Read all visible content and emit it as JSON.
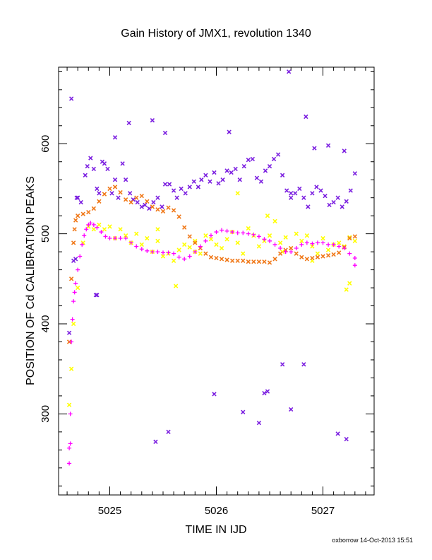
{
  "chart_data": {
    "type": "scatter",
    "title": "Gain History of JMX1, revolution 1340",
    "xlabel": "TIME IN IJD",
    "ylabel": "POSITION OF Cd CALIBRATION PEAKS",
    "xlim": [
      5024.52,
      5027.48
    ],
    "ylim": [
      210,
      685
    ],
    "xticks": [
      5025,
      5026,
      5027
    ],
    "yticks": [
      300,
      400,
      500,
      600
    ],
    "grid": false,
    "footer": "oxborrow 14-Oct-2013 15:51",
    "series": [
      {
        "marker": "x",
        "color": "#7b1fe0",
        "x": [
          5024.62,
          5024.66,
          5024.68,
          5024.7,
          5024.73,
          5024.77,
          5024.79,
          5024.82,
          5024.85,
          5024.88,
          5024.9,
          5024.93,
          5024.95,
          5024.98,
          5025.02,
          5025.05,
          5025.08,
          5025.12,
          5025.15,
          5025.19,
          5025.22,
          5025.26,
          5025.3,
          5025.33,
          5025.37,
          5025.41,
          5025.45,
          5025.49,
          5025.52,
          5025.56,
          5025.6,
          5025.63,
          5025.67,
          5025.71,
          5025.75,
          5025.79,
          5025.83,
          5025.86,
          5025.9,
          5025.94,
          5025.98,
          5026.02,
          5026.06,
          5026.1,
          5026.14,
          5026.18,
          5026.22,
          5026.26,
          5026.3,
          5026.34,
          5026.38,
          5026.42,
          5026.46,
          5026.5,
          5026.54,
          5026.58,
          5026.62,
          5026.66,
          5026.7,
          5026.74,
          5026.78,
          5026.82,
          5026.86,
          5026.9,
          5026.94,
          5026.98,
          5027.02,
          5027.06,
          5027.1,
          5027.14,
          5027.18,
          5027.22,
          5027.26,
          5027.3,
          5024.64,
          5024.69,
          5024.87,
          5025.05,
          5025.18,
          5025.4,
          5025.52,
          5025.98,
          5026.12,
          5026.25,
          5026.4,
          5026.45,
          5026.48,
          5026.68,
          5026.7,
          5026.82,
          5026.84,
          5027.05,
          5027.2,
          5024.88,
          5025.43,
          5025.55,
          5026.62,
          5026.7,
          5026.92,
          5027.14,
          5027.22
        ],
        "y": [
          390,
          470,
          472,
          540,
          535,
          565,
          575,
          584,
          572,
          550,
          545,
          580,
          578,
          572,
          545,
          560,
          540,
          578,
          560,
          545,
          538,
          535,
          530,
          532,
          528,
          535,
          540,
          530,
          555,
          555,
          548,
          540,
          550,
          545,
          552,
          558,
          552,
          560,
          565,
          558,
          568,
          556,
          560,
          570,
          568,
          572,
          560,
          575,
          582,
          583,
          562,
          558,
          570,
          575,
          583,
          588,
          565,
          548,
          545,
          545,
          550,
          540,
          530,
          545,
          552,
          548,
          542,
          532,
          535,
          540,
          530,
          536,
          548,
          567,
          650,
          540,
          432,
          607,
          623,
          626,
          612,
          322,
          613,
          302,
          290,
          323,
          325,
          680,
          540,
          355,
          630,
          598,
          592,
          432,
          269,
          280,
          355,
          305,
          595,
          278,
          272
        ]
      },
      {
        "marker": "x",
        "color": "#ffff00",
        "x": [
          5024.62,
          5024.64,
          5024.66,
          5024.7,
          5024.75,
          5024.8,
          5024.85,
          5024.9,
          5024.95,
          5025.0,
          5025.05,
          5025.1,
          5025.15,
          5025.2,
          5025.25,
          5025.3,
          5025.35,
          5025.4,
          5025.45,
          5025.5,
          5025.55,
          5025.6,
          5025.65,
          5025.7,
          5025.75,
          5025.8,
          5025.85,
          5025.9,
          5025.95,
          5026.0,
          5026.05,
          5026.1,
          5026.15,
          5026.2,
          5026.25,
          5026.3,
          5026.35,
          5026.4,
          5026.45,
          5026.5,
          5026.55,
          5026.6,
          5026.65,
          5026.7,
          5026.75,
          5026.8,
          5026.85,
          5026.9,
          5026.95,
          5027.0,
          5027.05,
          5027.1,
          5027.15,
          5027.2,
          5027.25,
          5027.3,
          5025.45,
          5025.62,
          5025.8,
          5026.2,
          5026.48,
          5026.62,
          5026.9,
          5027.22,
          5027.25
        ],
        "y": [
          310,
          350,
          400,
          440,
          490,
          508,
          505,
          510,
          505,
          508,
          495,
          505,
          498,
          490,
          500,
          488,
          495,
          480,
          492,
          475,
          478,
          470,
          482,
          488,
          485,
          492,
          478,
          498,
          494,
          488,
          484,
          494,
          502,
          490,
          478,
          506,
          498,
          486,
          492,
          498,
          514,
          490,
          496,
          484,
          500,
          492,
          498,
          486,
          478,
          495,
          482,
          488,
          490,
          486,
          496,
          492,
          505,
          442,
          480,
          545,
          520,
          480,
          470,
          438,
          445
        ]
      },
      {
        "marker": "x",
        "color": "#f07818",
        "x": [
          5024.62,
          5024.64,
          5024.66,
          5024.67,
          5024.68,
          5024.7,
          5024.75,
          5024.8,
          5024.85,
          5024.9,
          5024.95,
          5025.0,
          5025.05,
          5025.1,
          5025.15,
          5025.2,
          5025.25,
          5025.3,
          5025.35,
          5025.4,
          5025.45,
          5025.5,
          5025.55,
          5025.6,
          5025.65,
          5025.7,
          5025.75,
          5025.8,
          5025.85,
          5025.9,
          5025.95,
          5026.0,
          5026.05,
          5026.1,
          5026.15,
          5026.2,
          5026.25,
          5026.3,
          5026.35,
          5026.4,
          5026.45,
          5026.5,
          5026.55,
          5026.6,
          5026.65,
          5026.7,
          5026.75,
          5026.8,
          5026.85,
          5026.9,
          5026.95,
          5027.0,
          5027.05,
          5027.1,
          5027.15,
          5027.2,
          5027.25,
          5027.3
        ],
        "y": [
          380,
          450,
          490,
          505,
          515,
          520,
          522,
          524,
          528,
          536,
          544,
          550,
          552,
          546,
          538,
          535,
          540,
          542,
          536,
          530,
          527,
          525,
          529,
          526,
          519,
          507,
          497,
          490,
          484,
          478,
          474,
          473,
          472,
          471,
          470,
          470,
          470,
          469,
          469,
          469,
          469,
          468,
          472,
          478,
          482,
          484,
          478,
          474,
          472,
          473,
          474,
          475,
          476,
          477,
          479,
          485,
          495,
          497
        ]
      },
      {
        "marker": "+",
        "color": "#ff00ff",
        "x": [
          5024.62,
          5024.63,
          5024.64,
          5024.65,
          5024.66,
          5024.67,
          5024.68,
          5024.7,
          5024.72,
          5024.74,
          5024.76,
          5024.78,
          5024.8,
          5024.82,
          5024.85,
          5024.88,
          5024.92,
          5024.96,
          5025.0,
          5025.05,
          5025.1,
          5025.15,
          5025.2,
          5025.25,
          5025.3,
          5025.35,
          5025.4,
          5025.45,
          5025.5,
          5025.55,
          5025.6,
          5025.65,
          5025.7,
          5025.75,
          5025.8,
          5025.85,
          5025.9,
          5025.95,
          5026.0,
          5026.05,
          5026.1,
          5026.15,
          5026.2,
          5026.25,
          5026.3,
          5026.35,
          5026.4,
          5026.45,
          5026.5,
          5026.55,
          5026.6,
          5026.65,
          5026.7,
          5026.75,
          5026.8,
          5026.85,
          5026.9,
          5026.95,
          5027.0,
          5027.05,
          5027.1,
          5027.15,
          5027.2,
          5027.25,
          5027.3,
          5024.62,
          5024.63,
          5027.3
        ],
        "y": [
          245,
          300,
          380,
          405,
          425,
          435,
          445,
          460,
          475,
          488,
          498,
          505,
          510,
          512,
          510,
          507,
          502,
          497,
          495,
          495,
          495,
          495,
          490,
          486,
          483,
          481,
          480,
          480,
          479,
          479,
          478,
          474,
          472,
          475,
          480,
          486,
          492,
          498,
          502,
          504,
          503,
          502,
          501,
          501,
          500,
          499,
          497,
          494,
          492,
          488,
          484,
          480,
          480,
          484,
          488,
          490,
          489,
          490,
          490,
          488,
          488,
          486,
          484,
          478,
          473,
          262,
          267,
          465
        ]
      }
    ]
  }
}
